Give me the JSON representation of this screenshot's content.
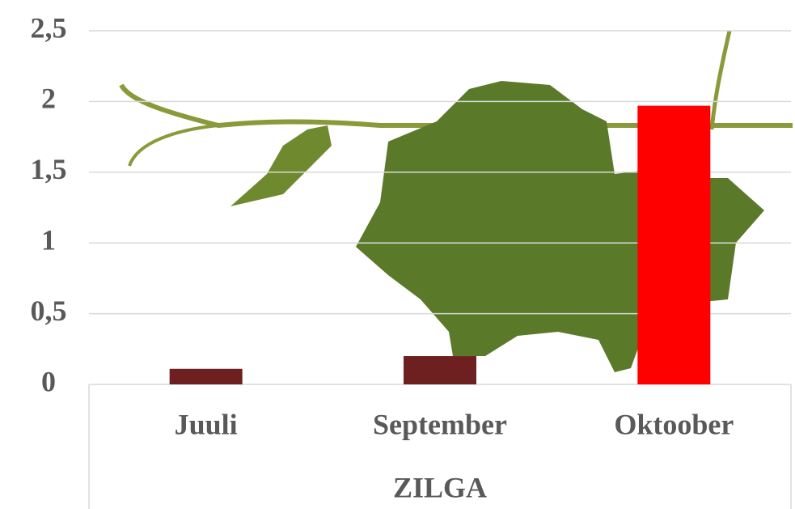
{
  "chart_data": {
    "type": "bar",
    "x_label": "ZILGA",
    "categories": [
      "Juuli",
      "September",
      "Oktoober"
    ],
    "values": [
      0.11,
      0.2,
      1.97
    ],
    "colors": [
      "#6e1f1f",
      "#6e1f1f",
      "#ff0000"
    ],
    "ylim": [
      0,
      2.5
    ],
    "yticks": [
      0,
      {
        "value": 0.5,
        "label": "0,5"
      },
      1,
      {
        "value": 1.5,
        "label": "1,5"
      },
      2,
      {
        "value": 2.5,
        "label": "2,5"
      }
    ],
    "grid": true
  }
}
